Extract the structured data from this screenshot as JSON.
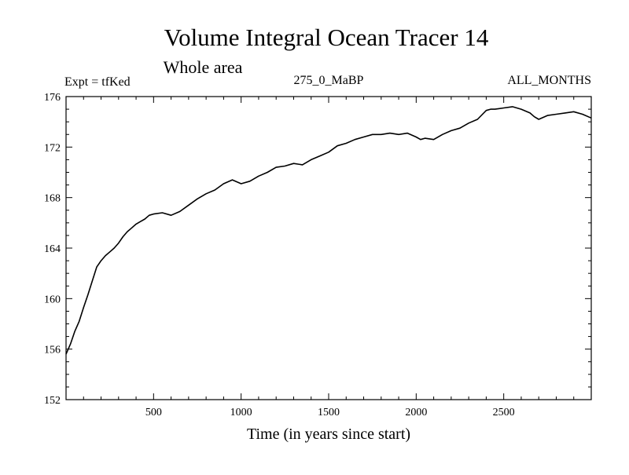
{
  "chart_data": {
    "type": "line",
    "title": "Volume Integral Ocean Tracer 14",
    "subtitle": "Whole area",
    "annotations": {
      "expt": "Expt = tfKed",
      "period": "275_0_MaBP",
      "months": "ALL_MONTHS"
    },
    "xlabel": "Time (in years since start)",
    "ylabel": "",
    "xlim": [
      0,
      3000
    ],
    "ylim": [
      152,
      176
    ],
    "x_ticks": [
      {
        "value": 500,
        "label": "500"
      },
      {
        "value": 1000,
        "label": "1000"
      },
      {
        "value": 1500,
        "label": "1500"
      },
      {
        "value": 2000,
        "label": "2000"
      },
      {
        "value": 2500,
        "label": "2500"
      }
    ],
    "y_ticks": [
      {
        "value": 152,
        "label": "152"
      },
      {
        "value": 156,
        "label": "156"
      },
      {
        "value": 160,
        "label": "160"
      },
      {
        "value": 164,
        "label": "164"
      },
      {
        "value": 168,
        "label": "168"
      },
      {
        "value": 172,
        "label": "172"
      },
      {
        "value": 176,
        "label": "176"
      }
    ],
    "x_minor_step": 100,
    "y_minor_step": 1,
    "grid": false,
    "legend": "none",
    "line_color": "#000000",
    "series": [
      {
        "x": [
          0,
          25,
          50,
          75,
          100,
          125,
          150,
          175,
          200,
          225,
          250,
          275,
          300,
          325,
          350,
          375,
          400,
          425,
          450,
          475,
          500,
          550,
          600,
          650,
          700,
          750,
          800,
          850,
          900,
          950,
          1000,
          1050,
          1100,
          1150,
          1200,
          1250,
          1300,
          1350,
          1400,
          1450,
          1500,
          1550,
          1600,
          1650,
          1700,
          1750,
          1800,
          1850,
          1900,
          1950,
          2000,
          2025,
          2050,
          2100,
          2150,
          2200,
          2250,
          2300,
          2350,
          2400,
          2425,
          2450,
          2500,
          2550,
          2600,
          2650,
          2675,
          2700,
          2750,
          2800,
          2850,
          2900,
          2950,
          3000
        ],
        "y": [
          155.6,
          156.4,
          157.4,
          158.2,
          159.3,
          160.3,
          161.4,
          162.5,
          163.0,
          163.4,
          163.7,
          164.0,
          164.4,
          164.9,
          165.3,
          165.6,
          165.9,
          166.1,
          166.3,
          166.6,
          166.7,
          166.8,
          166.6,
          166.9,
          167.4,
          167.9,
          168.3,
          168.6,
          169.1,
          169.4,
          169.1,
          169.3,
          169.7,
          170.0,
          170.4,
          170.5,
          170.7,
          170.6,
          171.0,
          171.3,
          171.6,
          172.1,
          172.3,
          172.6,
          172.8,
          173.0,
          173.0,
          173.1,
          173.0,
          173.1,
          172.8,
          172.6,
          172.7,
          172.6,
          173.0,
          173.3,
          173.5,
          173.9,
          174.2,
          174.9,
          175.0,
          175.0,
          175.1,
          175.2,
          175.0,
          174.7,
          174.4,
          174.2,
          174.5,
          174.6,
          174.7,
          174.8,
          174.6,
          174.3
        ]
      }
    ]
  }
}
